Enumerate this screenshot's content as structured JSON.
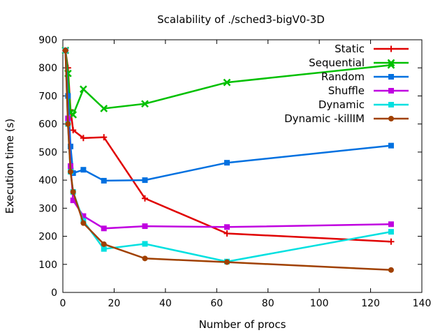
{
  "chart_data": {
    "type": "line",
    "title": "Scalability of ./sched3-bigV0-3D",
    "xlabel": "Number of procs",
    "ylabel": "Execution time (s)",
    "xlim": [
      0,
      140
    ],
    "ylim": [
      0,
      900
    ],
    "xticks": [
      0,
      20,
      40,
      60,
      80,
      100,
      120,
      140
    ],
    "yticks": [
      0,
      100,
      200,
      300,
      400,
      500,
      600,
      700,
      800,
      900
    ],
    "grid": false,
    "legend_position": "top-right",
    "x": [
      1,
      2,
      3,
      4,
      8,
      16,
      32,
      64,
      128
    ],
    "series": [
      {
        "name": "Static",
        "color": "#e00000",
        "marker": "plus",
        "values": [
          862,
          800,
          650,
          578,
          550,
          553,
          335,
          210,
          181
        ]
      },
      {
        "name": "Sequential",
        "color": "#00c000",
        "marker": "x",
        "values": [
          862,
          780,
          640,
          633,
          724,
          655,
          672,
          748,
          810
        ]
      },
      {
        "name": "Random",
        "color": "#0070e0",
        "marker": "square",
        "values": [
          862,
          700,
          520,
          425,
          437,
          398,
          400,
          462,
          523
        ]
      },
      {
        "name": "Shuffle",
        "color": "#c000e0",
        "marker": "square",
        "values": [
          862,
          620,
          450,
          328,
          272,
          228,
          236,
          233,
          243
        ]
      },
      {
        "name": "Dynamic",
        "color": "#00e0e0",
        "marker": "square",
        "values": [
          862,
          600,
          430,
          358,
          255,
          155,
          173,
          110,
          216
        ]
      },
      {
        "name": "Dynamic -killIM",
        "color": "#a04000",
        "marker": "circle",
        "values": [
          862,
          600,
          430,
          358,
          247,
          172,
          121,
          108,
          80
        ]
      }
    ]
  }
}
